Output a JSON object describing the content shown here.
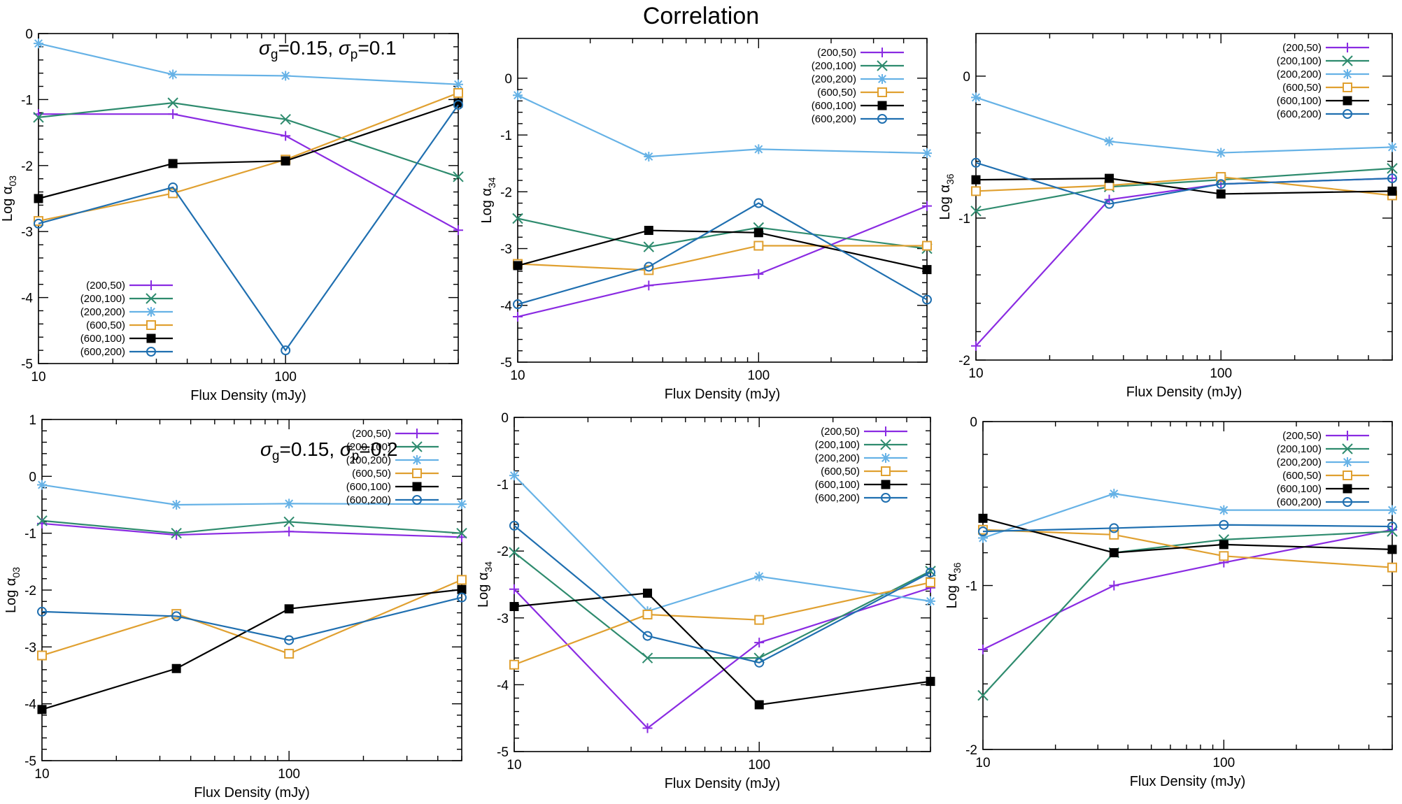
{
  "figure": {
    "title": "Correlation"
  },
  "colors": {
    "(200,50)": "#8a2be2",
    "(200,100)": "#2e8b6e",
    "(200,200)": "#66b2e6",
    "(600,50)": "#e0a030",
    "(600,100)": "#000000",
    "(600,200)": "#1f6fb0"
  },
  "markers": {
    "(200,50)": "plus",
    "(200,100)": "cross",
    "(200,200)": "star",
    "(600,50)": "square-open",
    "(600,100)": "square-filled",
    "(600,200)": "circle-open"
  },
  "chart_data": [
    {
      "type": "line",
      "xlabel": "Flux Density (mJy)",
      "ylabel_main": "Log α",
      "ylabel_sub": "03",
      "xscale": "log",
      "xlim": [
        10,
        500
      ],
      "xticks": [
        10,
        100
      ],
      "ylim": [
        -5,
        0
      ],
      "yticks": [
        0,
        -1,
        -2,
        -3,
        -4,
        -5
      ],
      "annotation": {
        "sg": "σ",
        "sg_sub": "g",
        "sg_val": "=0.15, ",
        "sp": "σ",
        "sp_sub": "p",
        "sp_val": "=0.1"
      },
      "legend_position": "bottom-left",
      "x": [
        10,
        35,
        100,
        500
      ],
      "series": [
        {
          "name": "(200,50)",
          "values": [
            -1.22,
            -1.22,
            -1.55,
            -2.98
          ]
        },
        {
          "name": "(200,100)",
          "values": [
            -1.27,
            -1.05,
            -1.3,
            -2.17
          ]
        },
        {
          "name": "(200,200)",
          "values": [
            -0.15,
            -0.62,
            -0.64,
            -0.77
          ]
        },
        {
          "name": "(600,50)",
          "values": [
            -2.84,
            -2.42,
            -1.91,
            -0.9
          ]
        },
        {
          "name": "(600,100)",
          "values": [
            -2.5,
            -1.97,
            -1.93,
            -1.05
          ]
        },
        {
          "name": "(600,200)",
          "values": [
            -2.88,
            -2.33,
            -4.8,
            -1.08
          ]
        }
      ]
    },
    {
      "type": "line",
      "xlabel": "Flux Density (mJy)",
      "ylabel_main": "Log α",
      "ylabel_sub": "34",
      "xscale": "log",
      "xlim": [
        10,
        500
      ],
      "xticks": [
        10,
        100
      ],
      "ylim": [
        -5,
        0.7
      ],
      "yticks": [
        0,
        -1,
        -2,
        -3,
        -4,
        -5
      ],
      "legend_position": "top-right",
      "x": [
        10,
        35,
        100,
        500
      ],
      "series": [
        {
          "name": "(200,50)",
          "values": [
            -4.2,
            -3.65,
            -3.45,
            -2.25
          ]
        },
        {
          "name": "(200,100)",
          "values": [
            -2.47,
            -2.97,
            -2.63,
            -3.0
          ]
        },
        {
          "name": "(200,200)",
          "values": [
            -0.3,
            -1.38,
            -1.25,
            -1.32
          ]
        },
        {
          "name": "(600,50)",
          "values": [
            -3.27,
            -3.38,
            -2.95,
            -2.95
          ]
        },
        {
          "name": "(600,100)",
          "values": [
            -3.3,
            -2.68,
            -2.72,
            -3.37
          ]
        },
        {
          "name": "(600,200)",
          "values": [
            -3.98,
            -3.32,
            -2.2,
            -3.9
          ]
        }
      ]
    },
    {
      "type": "line",
      "xlabel": "Flux Density (mJy)",
      "ylabel_main": "Log α",
      "ylabel_sub": "36",
      "xscale": "log",
      "xlim": [
        10,
        500
      ],
      "xticks": [
        10,
        100
      ],
      "ylim": [
        -2,
        0.3
      ],
      "yticks": [
        0,
        -1,
        -2
      ],
      "legend_position": "top-right",
      "x": [
        10,
        35,
        100,
        500
      ],
      "series": [
        {
          "name": "(200,50)",
          "values": [
            -1.9,
            -0.87,
            -0.76,
            -0.72
          ]
        },
        {
          "name": "(200,100)",
          "values": [
            -0.95,
            -0.78,
            -0.73,
            -0.65
          ]
        },
        {
          "name": "(200,200)",
          "values": [
            -0.15,
            -0.46,
            -0.54,
            -0.5
          ]
        },
        {
          "name": "(600,50)",
          "values": [
            -0.81,
            -0.77,
            -0.71,
            -0.84
          ]
        },
        {
          "name": "(600,100)",
          "values": [
            -0.73,
            -0.72,
            -0.83,
            -0.81
          ]
        },
        {
          "name": "(600,200)",
          "values": [
            -0.61,
            -0.9,
            -0.76,
            -0.72
          ]
        }
      ]
    },
    {
      "type": "line",
      "xlabel": "Flux Density (mJy)",
      "ylabel_main": "Log α",
      "ylabel_sub": "03",
      "xscale": "log",
      "xlim": [
        10,
        500
      ],
      "xticks": [
        10,
        100
      ],
      "ylim": [
        -5,
        1
      ],
      "yticks": [
        1,
        0,
        -1,
        -2,
        -3,
        -4,
        -5
      ],
      "annotation": {
        "sg": "σ",
        "sg_sub": "g",
        "sg_val": "=0.15, ",
        "sp": "σ",
        "sp_sub": "p",
        "sp_val": "=0.2"
      },
      "legend_position": "top-right",
      "x": [
        10,
        35,
        100,
        500
      ],
      "series": [
        {
          "name": "(200,50)",
          "values": [
            -0.83,
            -1.03,
            -0.97,
            -1.07
          ]
        },
        {
          "name": "(200,100)",
          "values": [
            -0.78,
            -1.0,
            -0.8,
            -1.0
          ]
        },
        {
          "name": "(200,200)",
          "values": [
            -0.15,
            -0.5,
            -0.48,
            -0.49
          ]
        },
        {
          "name": "(600,50)",
          "values": [
            -3.15,
            -2.42,
            -3.12,
            -1.82
          ]
        },
        {
          "name": "(600,100)",
          "values": [
            -4.1,
            -3.38,
            -2.33,
            -1.99
          ]
        },
        {
          "name": "(600,200)",
          "values": [
            -2.38,
            -2.46,
            -2.88,
            -2.13
          ]
        }
      ]
    },
    {
      "type": "line",
      "xlabel": "Flux Density (mJy)",
      "ylabel_main": "Log α",
      "ylabel_sub": "34",
      "xscale": "log",
      "xlim": [
        10,
        500
      ],
      "xticks": [
        10,
        100
      ],
      "ylim": [
        -5,
        0
      ],
      "yticks": [
        0,
        -1,
        -2,
        -3,
        -4,
        -5
      ],
      "legend_position": "top-right",
      "x": [
        10,
        35,
        100,
        500
      ],
      "series": [
        {
          "name": "(200,50)",
          "values": [
            -2.57,
            -4.65,
            -3.37,
            -2.55
          ]
        },
        {
          "name": "(200,100)",
          "values": [
            -2.02,
            -3.6,
            -3.6,
            -2.3
          ]
        },
        {
          "name": "(200,200)",
          "values": [
            -0.87,
            -2.9,
            -2.38,
            -2.75
          ]
        },
        {
          "name": "(600,50)",
          "values": [
            -3.7,
            -2.95,
            -3.03,
            -2.47
          ]
        },
        {
          "name": "(600,100)",
          "values": [
            -2.83,
            -2.63,
            -4.3,
            -3.95
          ]
        },
        {
          "name": "(600,200)",
          "values": [
            -1.62,
            -3.27,
            -3.67,
            -2.32
          ]
        }
      ]
    },
    {
      "type": "line",
      "xlabel": "Flux Density (mJy)",
      "ylabel_main": "Log α",
      "ylabel_sub": "36",
      "xscale": "log",
      "xlim": [
        10,
        500
      ],
      "xticks": [
        10,
        100
      ],
      "ylim": [
        -2,
        0
      ],
      "yticks": [
        0,
        -1,
        -2
      ],
      "legend_position": "top-right",
      "x": [
        10,
        35,
        100,
        500
      ],
      "series": [
        {
          "name": "(200,50)",
          "values": [
            -1.39,
            -1.0,
            -0.86,
            -0.66
          ]
        },
        {
          "name": "(200,100)",
          "values": [
            -1.67,
            -0.8,
            -0.72,
            -0.67
          ]
        },
        {
          "name": "(200,200)",
          "values": [
            -0.71,
            -0.44,
            -0.54,
            -0.54
          ]
        },
        {
          "name": "(600,50)",
          "values": [
            -0.66,
            -0.69,
            -0.82,
            -0.89
          ]
        },
        {
          "name": "(600,100)",
          "values": [
            -0.59,
            -0.8,
            -0.75,
            -0.78
          ]
        },
        {
          "name": "(600,200)",
          "values": [
            -0.67,
            -0.65,
            -0.63,
            -0.64
          ]
        }
      ]
    }
  ]
}
